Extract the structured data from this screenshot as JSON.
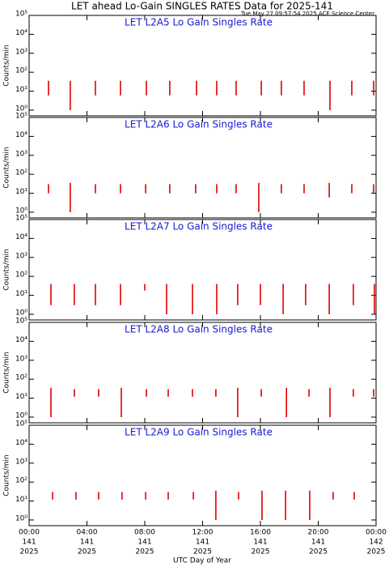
{
  "title": "LET ahead Lo-Gain SINGLES RATES Data for 2025-141",
  "subtitle": "Tue May 27 09:57:54 2025 ACE Science Center",
  "xlabel": "UTC Day of Year",
  "x_tick_labels": {
    "time": [
      "00:00",
      "04:00",
      "08:00",
      "12:00",
      "16:00",
      "20:00",
      "00:00"
    ],
    "day": [
      "141",
      "141",
      "141",
      "141",
      "141",
      "141",
      "142"
    ],
    "year": [
      "2025",
      "2025",
      "2025",
      "2025",
      "2025",
      "2025",
      "2025"
    ]
  },
  "chart_data": [
    {
      "type": "line",
      "title": "LET L2A5 Lo Gain Singles Rate",
      "ylabel": "Counts/min",
      "log_y": true,
      "color": "#e00000",
      "xlim": [
        0,
        24
      ],
      "xticks": [
        0,
        4,
        8,
        12,
        16,
        20,
        24
      ],
      "ylim": [
        0.5,
        100000
      ],
      "yticks": [
        {
          "value": 1,
          "label": "10⁰"
        },
        {
          "value": 10,
          "label": "10¹"
        },
        {
          "value": 100,
          "label": "10²"
        },
        {
          "value": 1000,
          "label": "10³"
        },
        {
          "value": 10000,
          "label": "10⁴"
        },
        {
          "value": 100000,
          "label": "10⁵"
        }
      ],
      "series": [
        {
          "name": "L2A5",
          "color": "#e00000",
          "x": [
            1.34,
            1.34,
            1.34,
            2.85,
            2.85,
            2.85,
            4.59,
            4.59,
            4.59,
            6.32,
            6.32,
            6.32,
            8.11,
            8.11,
            8.11,
            9.73,
            9.73,
            9.73,
            11.58,
            11.58,
            11.58,
            12.98,
            12.98,
            12.98,
            14.32,
            14.32,
            14.32,
            16.06,
            16.06,
            16.06,
            17.45,
            17.45,
            17.45,
            19.02,
            19.02,
            19.02,
            20.81,
            20.81,
            20.81,
            22.32,
            22.32,
            22.32,
            23.83,
            23.83,
            23.83
          ],
          "values": [
            35,
            6,
            null,
            35,
            1,
            null,
            35,
            6,
            null,
            35,
            6,
            null,
            35,
            6,
            null,
            35,
            6,
            null,
            35,
            6,
            null,
            35,
            6,
            null,
            35,
            6,
            null,
            35,
            6,
            null,
            35,
            6,
            null,
            35,
            6,
            null,
            35,
            1,
            null,
            35,
            6,
            null,
            35,
            6,
            null
          ]
        }
      ]
    },
    {
      "type": "line",
      "title": "LET L2A6 Lo Gain Singles Rate",
      "ylabel": "Counts/min",
      "log_y": true,
      "color": "#e00000",
      "xlim": [
        0,
        24
      ],
      "xticks": [
        0,
        4,
        8,
        12,
        16,
        20,
        24
      ],
      "ylim": [
        0.5,
        100000
      ],
      "yticks": [
        {
          "value": 1,
          "label": "10⁰"
        },
        {
          "value": 10,
          "label": "10¹"
        },
        {
          "value": 100,
          "label": "10²"
        },
        {
          "value": 1000,
          "label": "10³"
        },
        {
          "value": 10000,
          "label": "10⁴"
        },
        {
          "value": 100000,
          "label": "10⁵"
        }
      ],
      "series": [
        {
          "name": "L2A6",
          "color": "#e00000",
          "x": [
            1.34,
            1.34,
            1.34,
            2.85,
            2.85,
            2.85,
            4.59,
            4.59,
            4.59,
            6.32,
            6.32,
            6.32,
            8.06,
            8.06,
            8.06,
            9.73,
            9.73,
            9.73,
            11.52,
            11.52,
            11.52,
            12.98,
            12.98,
            12.98,
            14.32,
            14.32,
            14.32,
            15.89,
            15.89,
            15.89,
            17.45,
            17.45,
            17.45,
            19.02,
            19.02,
            19.02,
            20.76,
            20.76,
            20.76,
            22.32,
            22.32,
            22.32,
            23.83,
            23.83,
            23.83
          ],
          "values": [
            30,
            10,
            null,
            35,
            1,
            null,
            30,
            10,
            null,
            30,
            10,
            null,
            30,
            10,
            null,
            30,
            10,
            null,
            30,
            10,
            null,
            30,
            10,
            null,
            30,
            10,
            null,
            35,
            1,
            null,
            30,
            10,
            null,
            30,
            10,
            null,
            35,
            6,
            null,
            30,
            10,
            null,
            30,
            10,
            null
          ]
        }
      ]
    },
    {
      "type": "line",
      "title": "LET L2A7 Lo Gain Singles Rate",
      "ylabel": "Counts/min",
      "log_y": true,
      "color": "#e00000",
      "xlim": [
        0,
        24
      ],
      "xticks": [
        0,
        4,
        8,
        12,
        16,
        20,
        24
      ],
      "ylim": [
        0.5,
        100000
      ],
      "yticks": [
        {
          "value": 1,
          "label": "10⁰"
        },
        {
          "value": 10,
          "label": "10¹"
        },
        {
          "value": 100,
          "label": "10²"
        },
        {
          "value": 1000,
          "label": "10³"
        },
        {
          "value": 10000,
          "label": "10⁴"
        },
        {
          "value": 100000,
          "label": "10⁵"
        }
      ],
      "series": [
        {
          "name": "L2A7",
          "color": "#e00000",
          "x": [
            1.51,
            1.51,
            1.51,
            3.13,
            3.13,
            3.13,
            4.59,
            4.59,
            4.59,
            6.32,
            6.32,
            6.32,
            8.0,
            8.0,
            8.0,
            9.51,
            9.51,
            9.51,
            11.3,
            11.3,
            11.3,
            12.98,
            12.98,
            12.98,
            14.43,
            14.43,
            14.43,
            16.0,
            16.0,
            16.0,
            17.57,
            17.57,
            17.57,
            19.13,
            19.13,
            19.13,
            20.76,
            20.76,
            20.76,
            22.43,
            22.43,
            22.43,
            23.89,
            23.89,
            23.89
          ],
          "values": [
            40,
            3,
            null,
            40,
            3,
            null,
            40,
            3,
            null,
            40,
            3,
            null,
            40,
            18,
            null,
            40,
            1,
            null,
            40,
            1,
            null,
            40,
            1,
            null,
            40,
            3,
            null,
            40,
            3,
            null,
            40,
            1,
            null,
            40,
            3,
            null,
            40,
            1,
            null,
            40,
            3,
            null,
            40,
            1,
            null
          ]
        }
      ]
    },
    {
      "type": "line",
      "title": "LET L2A8 Lo Gain Singles Rate",
      "ylabel": "Counts/min",
      "log_y": true,
      "color": "#e00000",
      "xlim": [
        0,
        24
      ],
      "xticks": [
        0,
        4,
        8,
        12,
        16,
        20,
        24
      ],
      "ylim": [
        0.5,
        100000
      ],
      "yticks": [
        {
          "value": 1,
          "label": "10⁰"
        },
        {
          "value": 10,
          "label": "10¹"
        },
        {
          "value": 100,
          "label": "10²"
        },
        {
          "value": 1000,
          "label": "10³"
        },
        {
          "value": 10000,
          "label": "10⁴"
        },
        {
          "value": 100000,
          "label": "10⁵"
        }
      ],
      "series": [
        {
          "name": "L2A8",
          "color": "#e00000",
          "x": [
            1.51,
            1.51,
            1.51,
            3.13,
            3.13,
            3.13,
            4.81,
            4.81,
            4.81,
            6.38,
            6.38,
            6.38,
            8.11,
            8.11,
            8.11,
            9.62,
            9.62,
            9.62,
            11.3,
            11.3,
            11.3,
            12.92,
            12.92,
            12.92,
            14.43,
            14.43,
            14.43,
            16.06,
            16.06,
            16.06,
            17.8,
            17.8,
            17.8,
            19.36,
            19.36,
            19.36,
            20.81,
            20.81,
            20.81,
            22.43,
            22.43,
            22.43,
            23.83,
            23.83,
            23.83
          ],
          "values": [
            35,
            1,
            null,
            30,
            12,
            null,
            30,
            12,
            null,
            35,
            1,
            null,
            30,
            12,
            null,
            30,
            12,
            null,
            30,
            12,
            null,
            30,
            12,
            null,
            35,
            1,
            null,
            30,
            12,
            null,
            35,
            1,
            null,
            30,
            12,
            null,
            35,
            1,
            null,
            30,
            12,
            null,
            30,
            12,
            null
          ]
        }
      ]
    },
    {
      "type": "line",
      "title": "LET L2A9 Lo Gain Singles Rate",
      "ylabel": "Counts/min",
      "log_y": true,
      "color": "#e00000",
      "xlim": [
        0,
        24
      ],
      "xticks": [
        0,
        4,
        8,
        12,
        16,
        20,
        24
      ],
      "ylim": [
        0.5,
        100000
      ],
      "yticks": [
        {
          "value": 1,
          "label": "10⁰"
        },
        {
          "value": 10,
          "label": "10¹"
        },
        {
          "value": 100,
          "label": "10²"
        },
        {
          "value": 1000,
          "label": "10³"
        },
        {
          "value": 10000,
          "label": "10⁴"
        },
        {
          "value": 100000,
          "label": "10⁵"
        }
      ],
      "series": [
        {
          "name": "L2A9",
          "color": "#e00000",
          "x": [
            1.62,
            1.62,
            1.62,
            3.24,
            3.24,
            3.24,
            4.81,
            4.81,
            4.81,
            6.43,
            6.43,
            6.43,
            8.06,
            8.06,
            8.06,
            9.62,
            9.62,
            9.62,
            11.36,
            11.36,
            11.36,
            12.92,
            12.92,
            12.92,
            14.49,
            14.49,
            14.49,
            16.11,
            16.11,
            16.11,
            17.74,
            17.74,
            17.74,
            19.41,
            19.41,
            19.41,
            21.03,
            21.03,
            21.03,
            22.49,
            22.49,
            22.49
          ],
          "values": [
            30,
            12,
            null,
            30,
            12,
            null,
            30,
            12,
            null,
            30,
            12,
            null,
            30,
            12,
            null,
            30,
            12,
            null,
            30,
            12,
            null,
            35,
            1,
            null,
            30,
            12,
            null,
            35,
            1,
            null,
            35,
            1,
            null,
            35,
            1,
            null,
            30,
            12,
            null,
            30,
            12,
            null
          ]
        }
      ]
    }
  ]
}
